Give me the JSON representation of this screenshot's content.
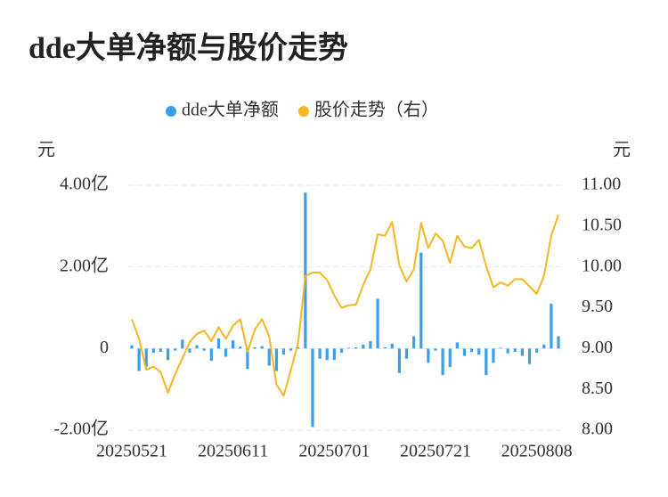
{
  "chart_data": {
    "type": "bar_line",
    "title": "dde大单净额与股价走势",
    "ylabel": "元",
    "y2label": "元",
    "categories": [
      "20250521",
      null,
      null,
      null,
      null,
      null,
      null,
      null,
      null,
      null,
      null,
      null,
      null,
      null,
      "20250611",
      null,
      null,
      null,
      null,
      null,
      null,
      null,
      null,
      null,
      null,
      null,
      null,
      null,
      "20250701",
      null,
      null,
      null,
      null,
      null,
      null,
      null,
      null,
      null,
      null,
      null,
      null,
      null,
      "20250721",
      null,
      null,
      null,
      null,
      null,
      null,
      null,
      null,
      null,
      null,
      null,
      null,
      null,
      "20250808",
      null,
      null,
      null
    ],
    "series": [
      {
        "name": "dde大单净额",
        "type": "bar",
        "color": "#3a9ee8",
        "axis": "y",
        "values": [
          0.08,
          -0.55,
          -0.45,
          -0.1,
          -0.08,
          -0.28,
          -0.05,
          0.22,
          -0.1,
          0.08,
          -0.05,
          -0.3,
          0.25,
          -0.2,
          0.2,
          0.05,
          -0.5,
          0.03,
          0.06,
          -0.42,
          -0.55,
          -0.15,
          -0.05,
          0.03,
          3.82,
          -1.92,
          -0.25,
          -0.28,
          -0.28,
          -0.1,
          0.02,
          0.03,
          0.1,
          0.18,
          1.22,
          0.03,
          0.12,
          -0.6,
          -0.25,
          0.3,
          2.35,
          -0.35,
          -0.05,
          -0.65,
          -0.45,
          0.15,
          -0.18,
          -0.08,
          -0.15,
          -0.65,
          -0.35,
          0.02,
          -0.12,
          -0.08,
          -0.18,
          -0.38,
          -0.1,
          0.1,
          1.1,
          0.3
        ]
      },
      {
        "name": "股价走势（右）",
        "type": "line",
        "color": "#f5b622",
        "axis": "y2",
        "values": [
          9.36,
          9.12,
          8.74,
          8.78,
          8.71,
          8.46,
          8.69,
          8.88,
          9.08,
          9.18,
          9.22,
          9.09,
          9.26,
          9.12,
          9.28,
          9.36,
          8.96,
          9.23,
          9.36,
          9.15,
          8.56,
          8.42,
          8.74,
          9.07,
          9.89,
          9.93,
          9.93,
          9.84,
          9.65,
          9.5,
          9.53,
          9.54,
          9.78,
          9.97,
          10.4,
          10.38,
          10.55,
          10.02,
          9.82,
          9.97,
          10.54,
          10.23,
          10.41,
          10.32,
          10.05,
          10.38,
          10.25,
          10.23,
          10.33,
          10.01,
          9.75,
          9.81,
          9.77,
          9.85,
          9.85,
          9.76,
          9.67,
          9.89,
          10.38,
          10.64
        ]
      }
    ],
    "ylim": [
      -2,
      4
    ],
    "yticks": [
      {
        "value": -2,
        "label": "-2.00亿"
      },
      0,
      {
        "value": 2,
        "label": "2.00亿"
      },
      {
        "value": 4,
        "label": "4.00亿"
      }
    ],
    "y2lim": [
      8,
      11
    ],
    "y2ticks": [
      {
        "value": 8,
        "label": "8.00"
      },
      {
        "value": 8.5,
        "label": "8.50"
      },
      {
        "value": 9,
        "label": "9.00"
      },
      {
        "value": 9.5,
        "label": "9.50"
      },
      {
        "value": 10,
        "label": "10.00"
      },
      {
        "value": 10.5,
        "label": "10.50"
      },
      {
        "value": 11,
        "label": "11.00"
      }
    ],
    "grid": true
  }
}
